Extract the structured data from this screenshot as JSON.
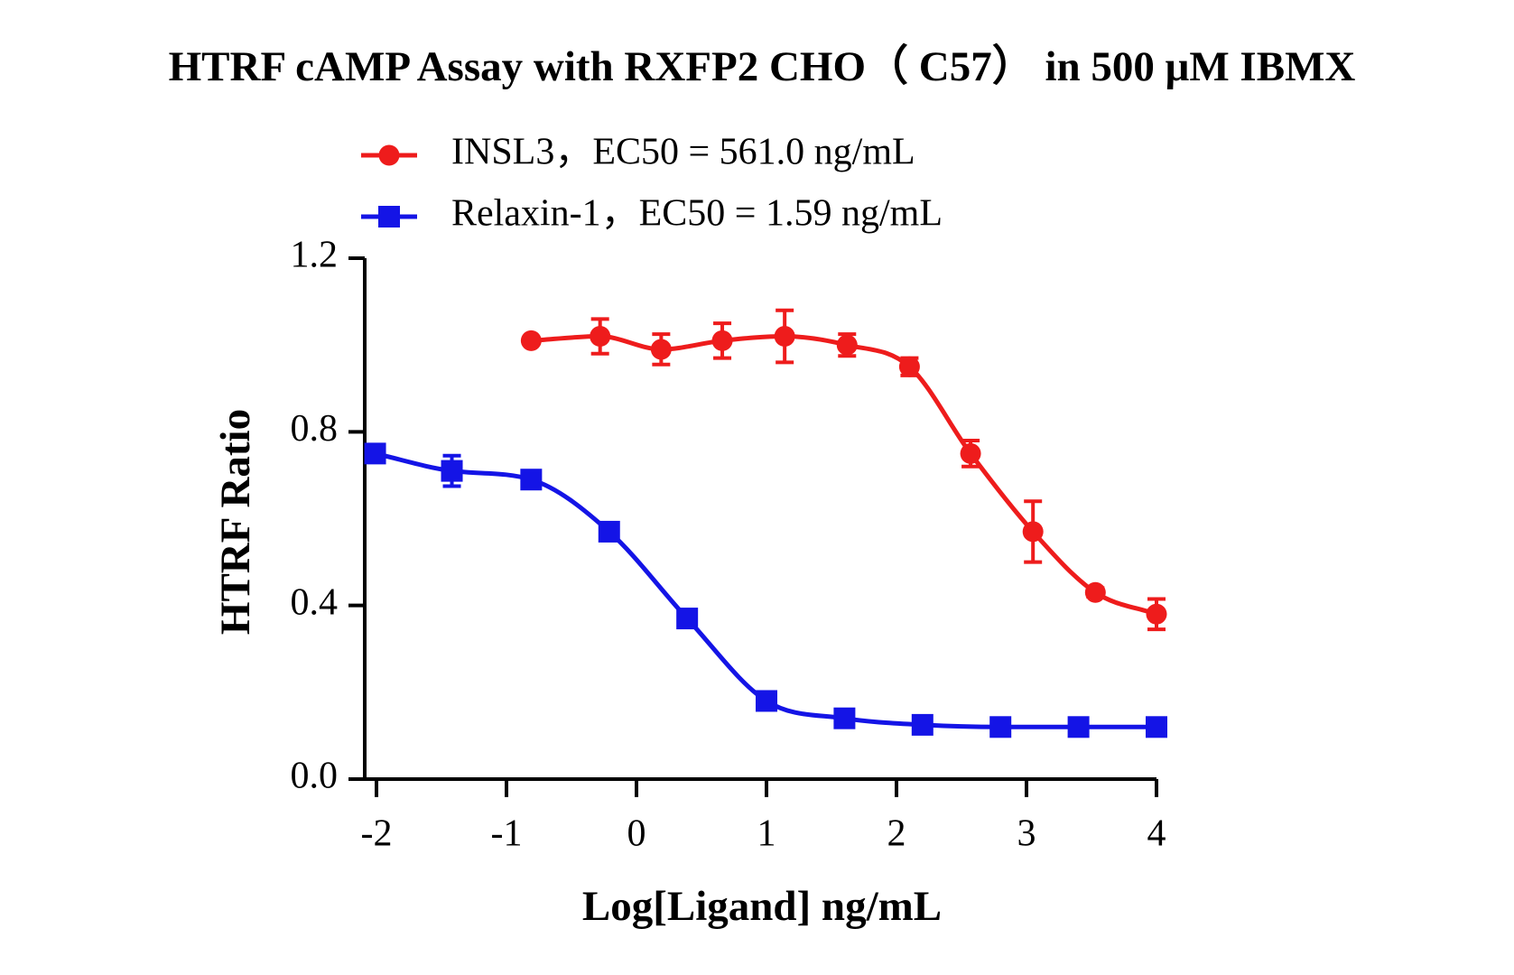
{
  "chart_data": {
    "type": "line",
    "title": "HTRF cAMP Assay with RXFP2 CHO（ C57） in 500 μM IBMX",
    "x_label": "Log[Ligand] ng/mL",
    "y_label": "HTRF Ratio",
    "xlim": [
      -2.1,
      4
    ],
    "ylim": [
      0,
      1.2
    ],
    "xticks": [
      -2,
      -1,
      0,
      1,
      2,
      3,
      4
    ],
    "yticks": [
      {
        "value": 0,
        "label": "0.0"
      },
      0.4,
      0.8,
      1.2
    ],
    "series": [
      {
        "name": "INSL3，EC50 = 561.0 ng/mL",
        "color": "#ee1c1c",
        "marker": "circle",
        "x": [
          -0.81,
          -0.28,
          0.19,
          0.66,
          1.14,
          1.62,
          2.1,
          2.57,
          3.05,
          3.53,
          4.0
        ],
        "values": [
          1.01,
          1.02,
          0.99,
          1.01,
          1.02,
          1.0,
          0.95,
          0.75,
          0.57,
          0.43,
          0.38
        ],
        "errors": [
          0.0,
          0.04,
          0.035,
          0.04,
          0.06,
          0.025,
          0.02,
          0.03,
          0.07,
          0.01,
          0.035
        ]
      },
      {
        "name": "Relaxin-1，EC50 = 1.59 ng/mL",
        "color": "#1414e6",
        "marker": "square",
        "x": [
          -2.01,
          -1.42,
          -0.81,
          -0.21,
          0.39,
          1.0,
          1.6,
          2.2,
          2.8,
          3.4,
          4.0
        ],
        "values": [
          0.75,
          0.71,
          0.69,
          0.57,
          0.37,
          0.18,
          0.14,
          0.125,
          0.12,
          0.12,
          0.12
        ],
        "errors": [
          0.02,
          0.035,
          0.02,
          0.01,
          0.01,
          0.01,
          0.0,
          0.0,
          0.0,
          0.0,
          0.0
        ]
      }
    ]
  }
}
